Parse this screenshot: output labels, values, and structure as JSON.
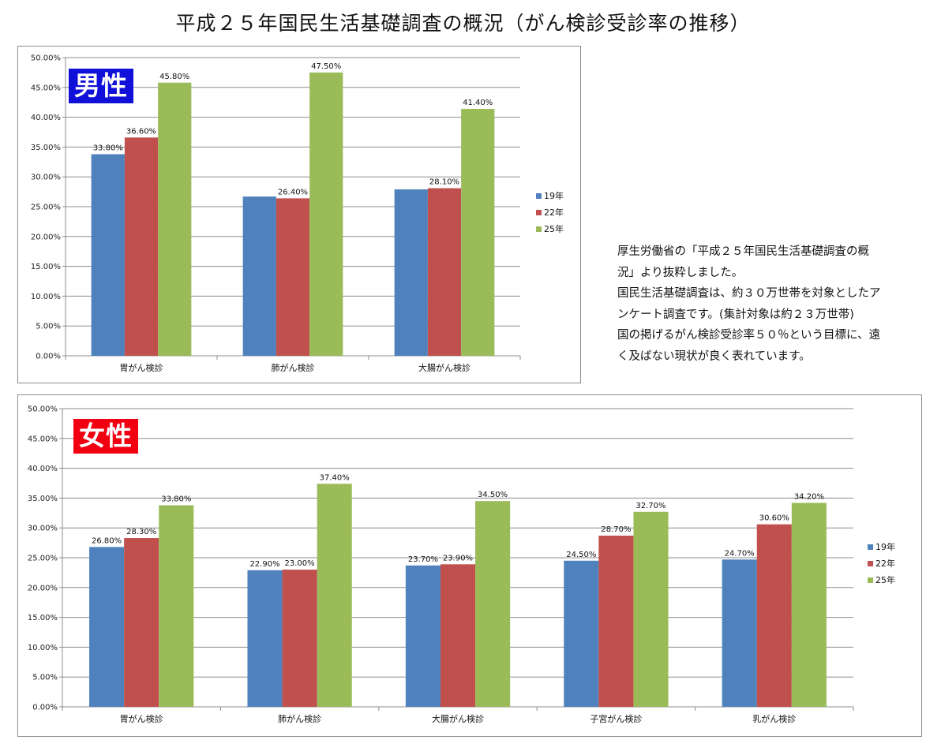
{
  "page": {
    "title": "平成２５年国民生活基礎調査の概況（がん検診受診率の推移）",
    "note_lines": [
      "厚生労働省の「平成２５年国民生活基礎調査の概",
      "況」より抜粋しました。",
      "国民生活基礎調査は、約３０万世帯を対象としたア",
      "ンケート調査です。(集計対象は約２３万世帯)",
      "国の掲げるがん検診受診率５０％という目標に、遠",
      "く及ばない現状が良く表れています。"
    ]
  },
  "charts": {
    "male": {
      "badge": "男性",
      "badge_color": "#1010d8"
    },
    "female": {
      "badge": "女性",
      "badge_color": "#f00010"
    }
  },
  "colors": {
    "s19": "#4f81bd",
    "s22": "#c0504d",
    "s25": "#9bbb59"
  },
  "chart_data": [
    {
      "type": "bar",
      "title": "",
      "xlabel": "",
      "ylabel": "",
      "ylim": [
        0,
        50
      ],
      "y_tick_labels": [
        "0.00%",
        "5.00%",
        "10.00%",
        "15.00%",
        "20.00%",
        "25.00%",
        "30.00%",
        "35.00%",
        "40.00%",
        "45.00%",
        "50.00%"
      ],
      "grid": true,
      "legend_position": "right",
      "categories": [
        "胃がん検診",
        "肺がん検診",
        "大腸がん検診"
      ],
      "series": [
        {
          "name": "19年",
          "values": [
            33.8,
            26.7,
            27.9
          ],
          "labels": [
            "33.80%",
            "",
            ""
          ]
        },
        {
          "name": "22年",
          "values": [
            36.6,
            26.4,
            28.1
          ],
          "labels": [
            "36.60%",
            "26.40%",
            "28.10%"
          ]
        },
        {
          "name": "25年",
          "values": [
            45.8,
            47.5,
            41.4
          ],
          "labels": [
            "45.80%",
            "47.50%",
            "41.40%"
          ]
        }
      ]
    },
    {
      "type": "bar",
      "title": "",
      "xlabel": "",
      "ylabel": "",
      "ylim": [
        0,
        50
      ],
      "y_tick_labels": [
        "0.00%",
        "5.00%",
        "10.00%",
        "15.00%",
        "20.00%",
        "25.00%",
        "30.00%",
        "35.00%",
        "40.00%",
        "45.00%",
        "50.00%"
      ],
      "grid": true,
      "legend_position": "right",
      "categories": [
        "胃がん検診",
        "肺がん検診",
        "大腸がん検診",
        "子宮がん検診",
        "乳がん検診"
      ],
      "series": [
        {
          "name": "19年",
          "values": [
            26.8,
            22.9,
            23.7,
            24.5,
            24.7
          ],
          "labels": [
            "26.80%",
            "22.90%",
            "23.70%",
            "24.50%",
            "24.70%"
          ]
        },
        {
          "name": "22年",
          "values": [
            28.3,
            23.0,
            23.9,
            28.7,
            30.6
          ],
          "labels": [
            "28.30%",
            "23.00%",
            "23.90%",
            "28.70%",
            "30.60%"
          ]
        },
        {
          "name": "25年",
          "values": [
            33.8,
            37.4,
            34.5,
            32.7,
            34.2
          ],
          "labels": [
            "33.80%",
            "37.40%",
            "34.50%",
            "32.70%",
            "34.20%"
          ]
        }
      ]
    }
  ]
}
